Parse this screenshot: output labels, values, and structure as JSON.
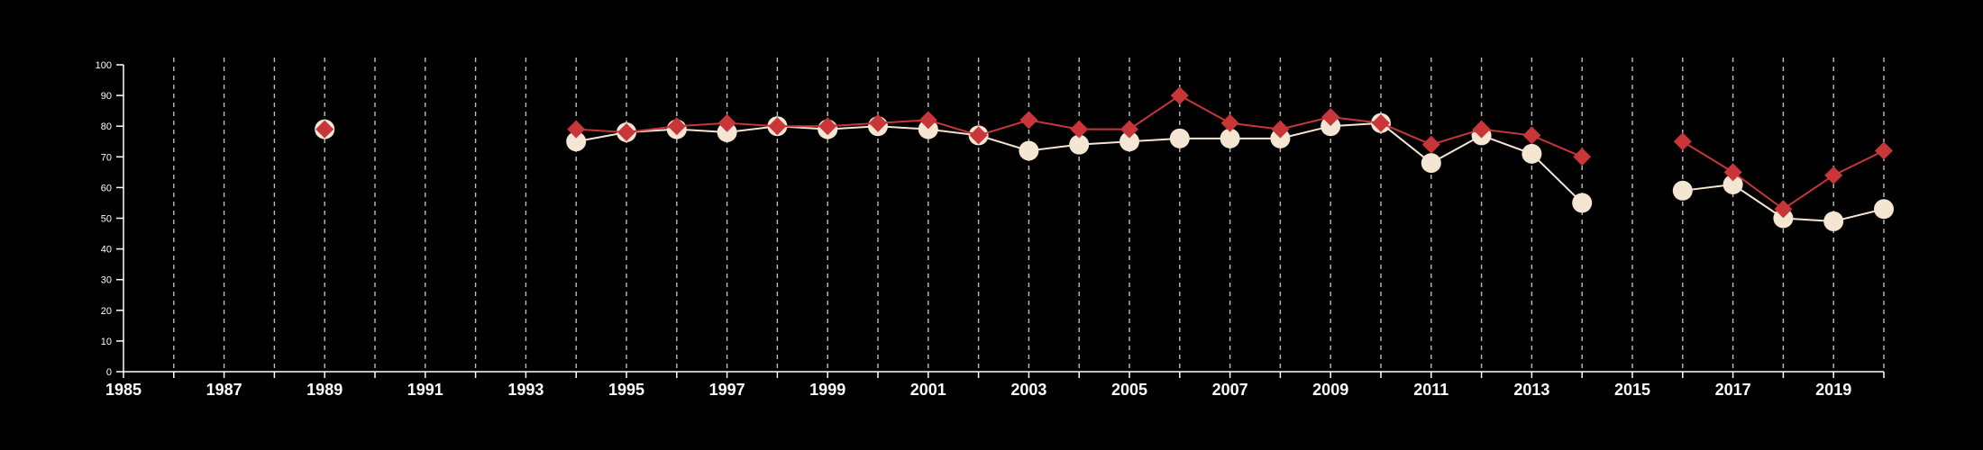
{
  "chart_data": {
    "type": "line",
    "title": "",
    "xlabel": "",
    "ylabel": "",
    "xlim": [
      1985,
      2020
    ],
    "ylim": [
      0,
      100
    ],
    "yticks": [
      0,
      10,
      20,
      30,
      40,
      50,
      60,
      70,
      80,
      90,
      100
    ],
    "xticks": [
      1985,
      1987,
      1989,
      1991,
      1993,
      1995,
      1997,
      1999,
      2001,
      2003,
      2005,
      2007,
      2009,
      2011,
      2013,
      2015,
      2017,
      2019
    ],
    "vertical_grid": "dashed, every year",
    "legend": "none",
    "colors": {
      "background": "#000000",
      "axis": "#ffffff",
      "grid": "#bdbdbd",
      "series_1": "#f5e6d3",
      "series_2": "#c8363a"
    },
    "series": [
      {
        "marker": "circle",
        "color": "#f5e6d3",
        "x": [
          1989,
          1994,
          1995,
          1996,
          1997,
          1998,
          1999,
          2000,
          2001,
          2002,
          2003,
          2004,
          2005,
          2006,
          2007,
          2008,
          2009,
          2010,
          2011,
          2012,
          2013,
          2014,
          2016,
          2017,
          2018,
          2019,
          2020
        ],
        "values": [
          79,
          75,
          78,
          79,
          78,
          80,
          79,
          80,
          79,
          77,
          72,
          74,
          75,
          76,
          76,
          76,
          80,
          81,
          68,
          77,
          71,
          55,
          59,
          61,
          50,
          49,
          53
        ]
      },
      {
        "marker": "diamond",
        "color": "#c8363a",
        "x": [
          1989,
          1994,
          1995,
          1996,
          1997,
          1998,
          1999,
          2000,
          2001,
          2002,
          2003,
          2004,
          2005,
          2006,
          2007,
          2008,
          2009,
          2010,
          2011,
          2012,
          2013,
          2014,
          2016,
          2017,
          2018,
          2019,
          2020
        ],
        "values": [
          79,
          79,
          78,
          80,
          81,
          80,
          80,
          81,
          82,
          77,
          82,
          79,
          79,
          90,
          81,
          79,
          83,
          81,
          74,
          79,
          77,
          70,
          75,
          65,
          53,
          64,
          72
        ]
      }
    ]
  }
}
